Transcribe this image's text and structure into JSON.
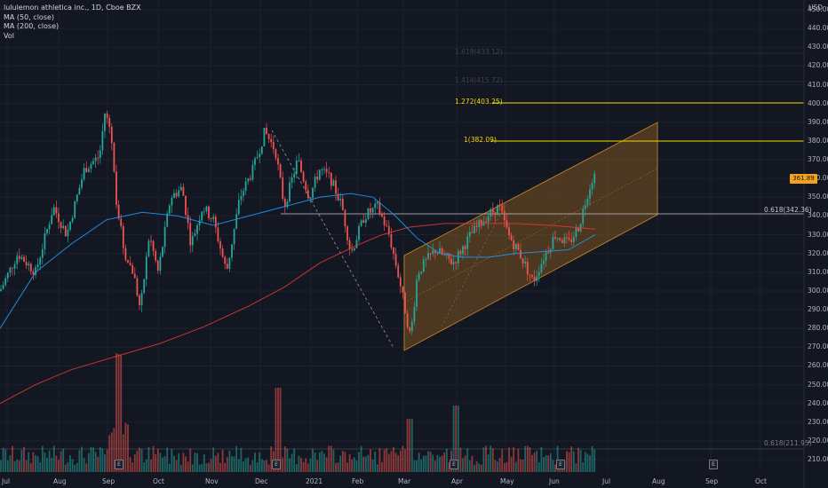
{
  "legend": {
    "title": "lululemon athletica inc., 1D, Cboe BZX",
    "ma50": "MA (50, close)",
    "ma200": "MA (200, close)",
    "vol": "Vol"
  },
  "price_axis": {
    "currency": "USD",
    "ticks": [
      "450.00",
      "440.00",
      "430.00",
      "420.00",
      "410.00",
      "400.00",
      "390.00",
      "380.00",
      "370.00",
      "360.00",
      "350.00",
      "340.00",
      "330.00",
      "320.00",
      "310.00",
      "300.00",
      "290.00",
      "280.00",
      "270.00",
      "260.00",
      "250.00",
      "240.00",
      "230.00",
      "220.00",
      "210.00"
    ]
  },
  "time_axis": {
    "ticks": [
      "Jul",
      "Aug",
      "Sep",
      "Oct",
      "Nov",
      "Dec",
      "2021",
      "Feb",
      "Mar",
      "Apr",
      "May",
      "Jun",
      "Jul",
      "Aug",
      "Sep",
      "Oct"
    ]
  },
  "fib_levels": {
    "l1272": "1.272(403.25)",
    "l1": "1(382.09)",
    "l0618": "0.618(342.36)",
    "l_bottom": "0.618(211.95)",
    "faint_upper": "1.618(433.12)",
    "faint_mid": "1.414(415.72)"
  },
  "last_price": "361.89",
  "earnings_marker": "E",
  "colors": {
    "background": "#131722",
    "up": "#26a69a",
    "down": "#ef5350",
    "ma50": "#2196f3",
    "ma200": "#e53935",
    "fib": "#f5d900",
    "channel": "#b8741d",
    "price_tag": "#f7a21b"
  },
  "chart_data": {
    "type": "candlestick",
    "title": "lululemon athletica inc., 1D, Cboe BZX",
    "ylabel": "USD",
    "ylim": [
      205,
      455
    ],
    "x": [
      "Jul",
      "Aug",
      "Sep",
      "Oct",
      "Nov",
      "Dec",
      "2021",
      "Feb",
      "Mar",
      "Apr",
      "May",
      "Jun",
      "Jul",
      "Aug",
      "Sep",
      "Oct"
    ],
    "close_path": [
      {
        "date": "Jul",
        "close": 300
      },
      {
        "date": "Aug",
        "close": 335
      },
      {
        "date": "late Aug",
        "close": 385
      },
      {
        "date": "Sep",
        "close": 345
      },
      {
        "date": "late Sep",
        "close": 300
      },
      {
        "date": "Oct",
        "close": 355
      },
      {
        "date": "late Oct",
        "close": 325
      },
      {
        "date": "Nov",
        "close": 345
      },
      {
        "date": "Dec",
        "close": 380
      },
      {
        "date": "late Dec",
        "close": 355
      },
      {
        "date": "2021",
        "close": 345
      },
      {
        "date": "Feb",
        "close": 340
      },
      {
        "date": "Mar",
        "close": 285
      },
      {
        "date": "Apr",
        "close": 325
      },
      {
        "date": "May",
        "close": 335
      },
      {
        "date": "late May",
        "close": 310
      },
      {
        "date": "Jun",
        "close": 325
      },
      {
        "date": "late Jun",
        "close": 361.89
      }
    ]
  }
}
